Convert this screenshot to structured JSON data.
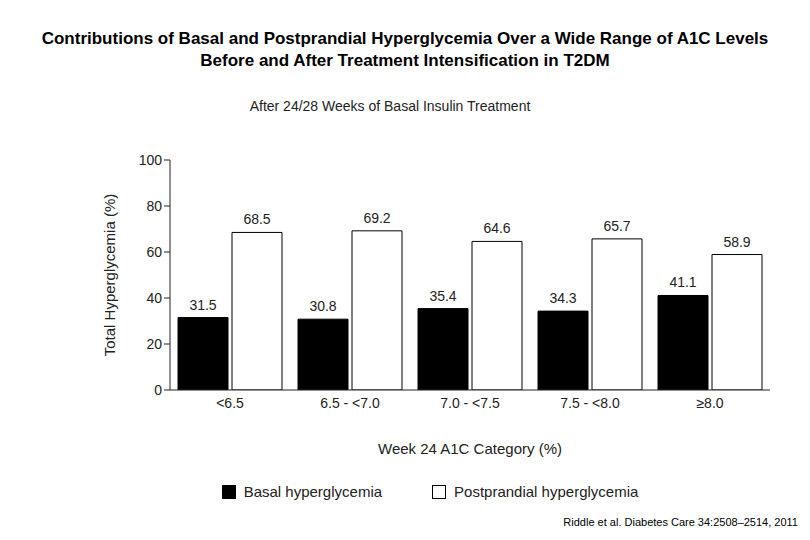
{
  "chart_data": {
    "type": "bar",
    "title": "Contributions of Basal and Postprandial Hyperglycemia Over a Wide Range of A1C Levels Before and After Treatment Intensification in T2DM",
    "subtitle": "After 24/28 Weeks of Basal Insulin Treatment",
    "x_label": "Week 24 A1C Category (%)",
    "y_label": "Total Hyperglycemia (%)",
    "annotations": [
      "Riddle et al. Diabetes Care 34:2508–2514, 2011"
    ],
    "categories": [
      "<6.5",
      "6.5 - <7.0",
      "7.0 - <7.5",
      "7.5 - <8.0",
      "≥8.0"
    ],
    "series": [
      {
        "name": "Basal hyperglycemia",
        "color": "#000000",
        "values": [
          31.5,
          30.8,
          35.4,
          34.3,
          41.1
        ]
      },
      {
        "name": "Postprandial hyperglycemia",
        "color": "#ffffff",
        "values": [
          68.5,
          69.2,
          64.6,
          65.7,
          58.9
        ]
      }
    ],
    "ylim": [
      0,
      100
    ],
    "yticks": [
      0,
      20,
      40,
      60,
      80,
      100
    ],
    "grid": false,
    "legend": "bottom",
    "data_labels": true
  }
}
